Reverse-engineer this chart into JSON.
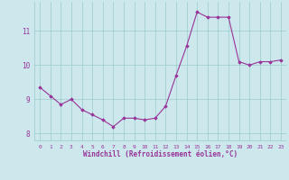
{
  "x": [
    0,
    1,
    2,
    3,
    4,
    5,
    6,
    7,
    8,
    9,
    10,
    11,
    12,
    13,
    14,
    15,
    16,
    17,
    18,
    19,
    20,
    21,
    22,
    23
  ],
  "y": [
    9.35,
    9.1,
    8.85,
    9.0,
    8.7,
    8.55,
    8.4,
    8.2,
    8.45,
    8.45,
    8.4,
    8.45,
    8.8,
    9.7,
    10.55,
    11.55,
    11.4,
    11.4,
    11.4,
    10.1,
    10.0,
    10.1,
    10.1,
    10.15
  ],
  "line_color": "#993399",
  "marker": "D",
  "marker_size": 1.8,
  "line_width": 0.8,
  "xlabel": "Windchill (Refroidissement éolien,°C)",
  "ylim": [
    7.8,
    11.85
  ],
  "xlim": [
    -0.5,
    23.5
  ],
  "yticks": [
    8,
    9,
    10,
    11
  ],
  "xticks": [
    0,
    1,
    2,
    3,
    4,
    5,
    6,
    7,
    8,
    9,
    10,
    11,
    12,
    13,
    14,
    15,
    16,
    17,
    18,
    19,
    20,
    21,
    22,
    23
  ],
  "background_color": "#cce8ec",
  "grid_color": "#99cccc",
  "label_color": "#993399",
  "figsize": [
    3.2,
    2.0
  ],
  "dpi": 100,
  "xlabel_fontsize": 5.5,
  "xtick_fontsize": 4.5,
  "ytick_fontsize": 5.5
}
